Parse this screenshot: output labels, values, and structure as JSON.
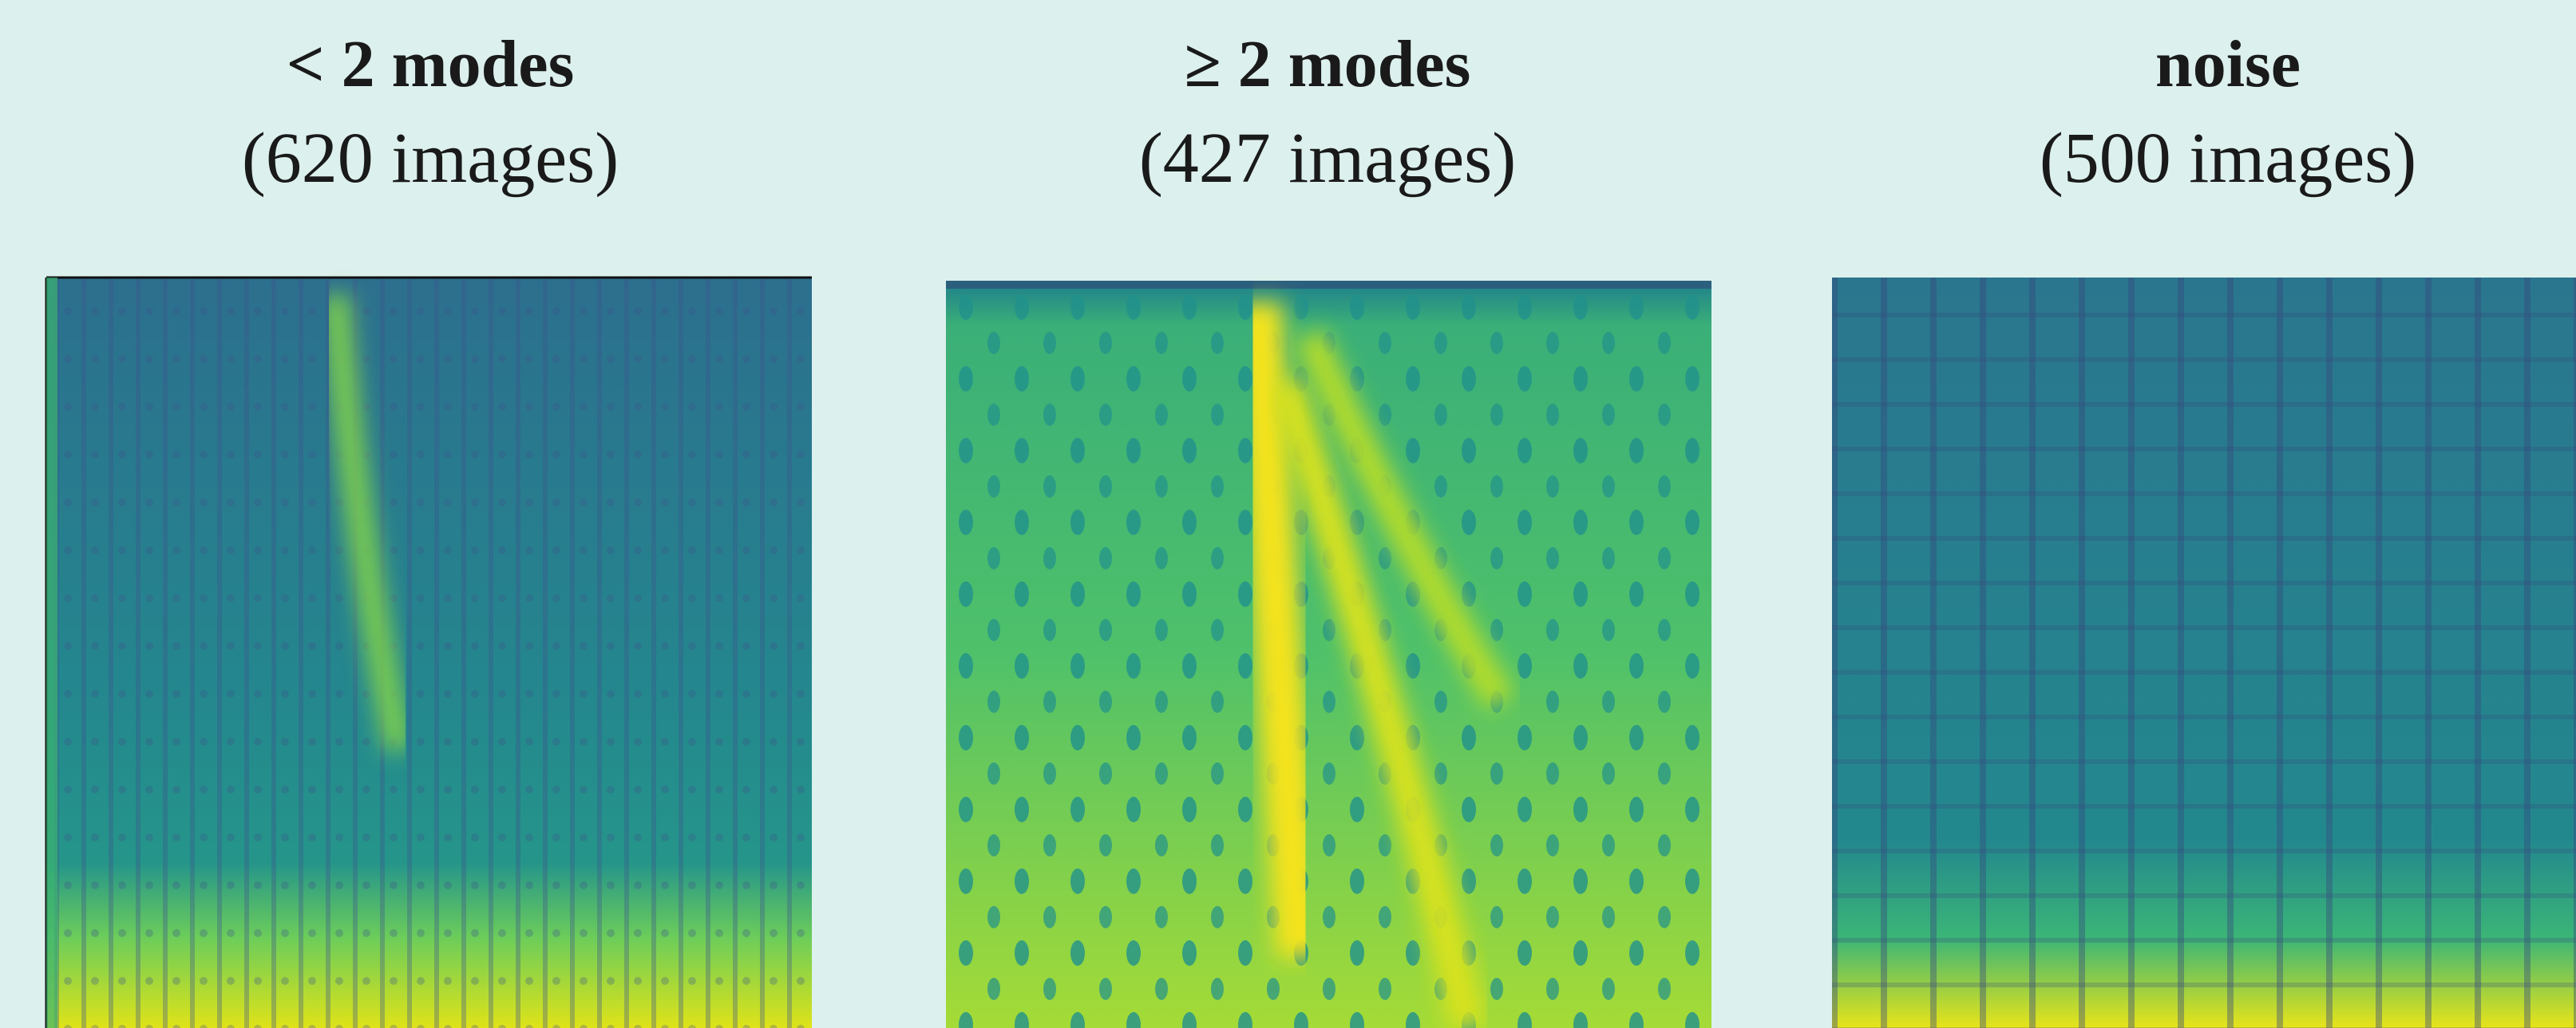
{
  "panels": [
    {
      "title": "< 2 modes",
      "subtitle": "(620 images)"
    },
    {
      "title": "≥ 2 modes",
      "subtitle": "(427 images)"
    },
    {
      "title": "noise",
      "subtitle": "(500 images)"
    }
  ]
}
